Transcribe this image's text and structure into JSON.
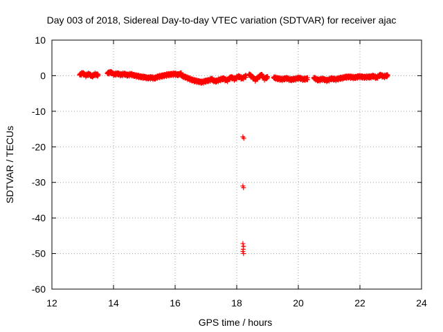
{
  "chart_data": {
    "type": "scatter",
    "title": "Day 003 of 2018, Sidereal Day-to-day VTEC variation (SDTVAR) for receiver ajac",
    "xlabel": "GPS time / hours",
    "ylabel": "SDTVAR / TECUs",
    "xlim": [
      12,
      24
    ],
    "ylim": [
      -60,
      10
    ],
    "xticks": [
      "12",
      "14",
      "16",
      "18",
      "20",
      "22",
      "24"
    ],
    "yticks": [
      "10",
      "0",
      "-10",
      "-20",
      "-30",
      "-40",
      "-50",
      "-60"
    ],
    "grid": true,
    "marker": "plus",
    "series": [
      {
        "color": "#ff0000",
        "segments": [
          {
            "x_start": 12.9,
            "x_end": 13.5,
            "y": [
              0.2,
              0.6,
              0.0,
              0.4,
              -0.2,
              0.3,
              0.1
            ]
          },
          {
            "x_start": 13.8,
            "x_end": 15.0,
            "y": [
              0.6,
              0.9,
              0.3,
              0.5,
              0.2,
              0.4,
              0.1,
              0.3,
              0.0,
              -0.2,
              -0.4,
              -0.5
            ]
          },
          {
            "x_start": 15.0,
            "x_end": 16.2,
            "y": [
              -0.5,
              -0.7,
              -0.6,
              -0.8,
              -0.4,
              -0.2,
              0.0,
              0.2,
              0.3,
              0.4,
              0.2,
              0.5
            ]
          },
          {
            "x_start": 16.2,
            "x_end": 17.2,
            "y": [
              0.0,
              -0.4,
              -0.8,
              -1.2,
              -1.5,
              -1.7,
              -1.9,
              -1.6,
              -1.4,
              -1.0
            ]
          },
          {
            "x_start": 17.2,
            "x_end": 18.3,
            "y": [
              -1.3,
              -1.6,
              -1.2,
              -0.9,
              -1.4,
              -0.5,
              -1.0,
              -0.3,
              -0.8,
              -0.2
            ]
          },
          {
            "x_start": 18.4,
            "x_end": 19.0,
            "y": [
              0.3,
              -0.4,
              -1.2,
              -0.6,
              0.2,
              -0.9,
              -0.5
            ]
          },
          {
            "x_start": 19.2,
            "x_end": 20.3,
            "y": [
              -0.6,
              -0.9,
              -1.1,
              -0.8,
              -1.2,
              -1.0,
              -0.7,
              -1.1,
              -0.9
            ]
          },
          {
            "x_start": 20.5,
            "x_end": 21.5,
            "y": [
              -0.7,
              -1.3,
              -1.0,
              -1.4,
              -0.9,
              -1.1,
              -0.8,
              -0.6
            ]
          },
          {
            "x_start": 21.5,
            "x_end": 22.3,
            "y": [
              -0.5,
              -0.4,
              -0.6,
              -0.3,
              -0.5,
              -0.4
            ]
          },
          {
            "x_start": 22.3,
            "x_end": 22.9,
            "y": [
              -0.5,
              -0.2,
              -0.6,
              0.1,
              -0.3,
              0.0
            ]
          }
        ],
        "outliers": [
          {
            "x": 18.2,
            "y": -17.2
          },
          {
            "x": 18.23,
            "y": -17.6
          },
          {
            "x": 18.2,
            "y": -31.0
          },
          {
            "x": 18.22,
            "y": -31.5
          },
          {
            "x": 18.2,
            "y": -47.2
          },
          {
            "x": 18.22,
            "y": -48.0
          },
          {
            "x": 18.21,
            "y": -48.8
          },
          {
            "x": 18.2,
            "y": -49.4
          },
          {
            "x": 18.22,
            "y": -50.0
          }
        ]
      }
    ]
  }
}
